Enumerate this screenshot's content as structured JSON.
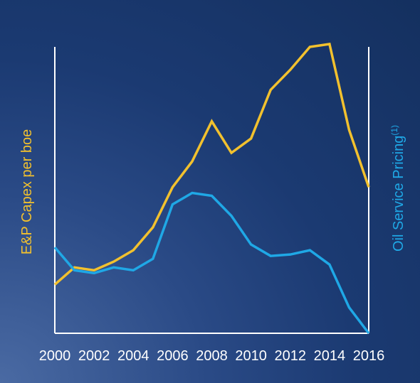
{
  "chart_data": {
    "type": "line",
    "x": [
      2000,
      2001,
      2002,
      2003,
      2004,
      2005,
      2006,
      2007,
      2008,
      2009,
      2010,
      2011,
      2012,
      2013,
      2014,
      2015,
      2016
    ],
    "xticks": [
      "2000",
      "2002",
      "2004",
      "2006",
      "2008",
      "2010",
      "2012",
      "2014",
      "2016"
    ],
    "xlim": [
      2000,
      2016
    ],
    "ylim": [
      0,
      100
    ],
    "grid": false,
    "ylabel_left": "E&P Capex per boe",
    "ylabel_right_text": "Oil Service Pricing",
    "ylabel_right_superscript": "(1)",
    "series": [
      {
        "axis": "left",
        "color": "#f2c12e",
        "values": [
          17,
          23,
          22,
          25,
          29,
          37,
          51,
          60,
          74,
          63,
          68,
          85,
          92,
          100,
          101,
          71,
          51
        ]
      },
      {
        "axis": "right",
        "color": "#1fa8e6",
        "values": [
          30,
          22,
          21,
          23,
          22,
          26,
          45,
          49,
          48,
          41,
          31,
          27,
          27.5,
          29,
          24,
          9,
          0
        ]
      }
    ]
  }
}
